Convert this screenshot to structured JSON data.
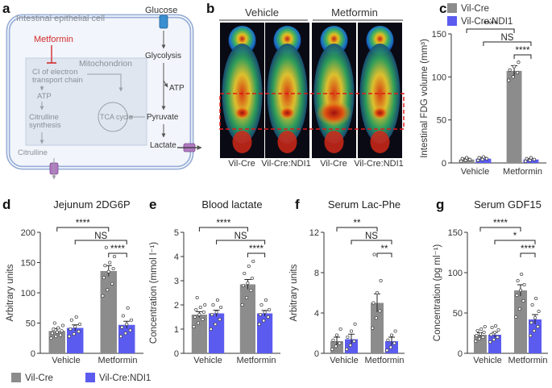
{
  "panel_letters": {
    "a": "a",
    "b": "b",
    "c": "c",
    "d": "d",
    "e": "e",
    "f": "f",
    "g": "g"
  },
  "schematic": {
    "cell_label": "Intestinal epithelial cell",
    "glucose": "Glucose",
    "glycolysis": "Glycolysis",
    "atp_right": "ATP",
    "pyruvate": "Pyruvate",
    "lactate": "Lactate",
    "metformin": "Metformin",
    "mitochondrion": "Mitochondrion",
    "ci_line1": "CI of electron",
    "ci_line2": "transport chain",
    "atp_left": "ATP",
    "citrulline_line1": "Citrulline",
    "citrulline_line2": "synthesis",
    "tca": "TCA cycle",
    "citrulline": "Citrulline"
  },
  "pet": {
    "group_vehicle": "Vehicle",
    "group_metformin": "Metformin",
    "labels": [
      "Vil-Cre",
      "Vil-Cre:NDI1",
      "Vil-Cre",
      "Vil-Cre:NDI1"
    ]
  },
  "legend": {
    "vilcre": "Vil-Cre",
    "ndi1": "Vil-Cre:NDI1",
    "color_vilcre": "#8c8c8c",
    "color_ndi1": "#5b5bf0"
  },
  "chart_data": [
    {
      "id": "c",
      "type": "bar",
      "title": "",
      "ylabel": "Intestinal FDG volume (mm³)",
      "categories": [
        "Vehicle",
        "Metformin"
      ],
      "ylim": [
        0,
        150
      ],
      "yticks": [
        0,
        50,
        100,
        150
      ],
      "series": [
        {
          "name": "Vil-Cre",
          "values": [
            4,
            107
          ],
          "errors": [
            1.5,
            6
          ],
          "points": [
            [
              2,
              3,
              4,
              5,
              6
            ],
            [
              96,
              100,
              105,
              108,
              112,
              117
            ]
          ]
        },
        {
          "name": "Vil-Cre:NDI1",
          "values": [
            5,
            4
          ],
          "errors": [
            1.5,
            1
          ],
          "points": [
            [
              3,
              4,
              5,
              6,
              7
            ],
            [
              2,
              3,
              4,
              5,
              6
            ]
          ]
        }
      ],
      "stats": [
        "****",
        "NS",
        "****"
      ]
    },
    {
      "id": "d",
      "type": "bar",
      "title": "Jejunum 2DG6P",
      "ylabel": "Arbitrary units",
      "categories": [
        "Vehicle",
        "Metformin"
      ],
      "ylim": [
        0,
        200
      ],
      "yticks": [
        0,
        50,
        100,
        150,
        200
      ],
      "series": [
        {
          "name": "Vil-Cre",
          "values": [
            37,
            136
          ],
          "errors": [
            4,
            9
          ],
          "points": [
            [
              25,
              28,
              30,
              33,
              35,
              37,
              40,
              42,
              46,
              50
            ],
            [
              95,
              105,
              115,
              125,
              135,
              140,
              145,
              150,
              160,
              175
            ]
          ]
        },
        {
          "name": "Vil-Cre:NDI1",
          "values": [
            42,
            47
          ],
          "errors": [
            5,
            6
          ],
          "points": [
            [
              28,
              32,
              36,
              40,
              44,
              48,
              55,
              60
            ],
            [
              28,
              33,
              38,
              43,
              48,
              55,
              62,
              75
            ]
          ]
        }
      ],
      "stats": [
        "****",
        "NS",
        "****"
      ]
    },
    {
      "id": "e",
      "type": "bar",
      "title": "Blood lactate",
      "ylabel": "Concentration (mmol l⁻¹)",
      "categories": [
        "Vehicle",
        "Metformin"
      ],
      "ylim": [
        0,
        5
      ],
      "yticks": [
        0,
        1,
        2,
        3,
        4,
        5
      ],
      "series": [
        {
          "name": "Vil-Cre",
          "values": [
            1.6,
            2.85
          ],
          "errors": [
            0.12,
            0.2
          ],
          "points": [
            [
              1.1,
              1.25,
              1.4,
              1.5,
              1.6,
              1.7,
              1.8,
              1.9,
              2.0,
              2.3
            ],
            [
              2.0,
              2.3,
              2.6,
              2.8,
              2.9,
              3.1,
              3.3,
              3.6,
              3.8
            ]
          ]
        },
        {
          "name": "Vil-Cre:NDI1",
          "values": [
            1.65,
            1.65
          ],
          "errors": [
            0.13,
            0.12
          ],
          "points": [
            [
              1.0,
              1.2,
              1.4,
              1.6,
              1.7,
              1.9,
              2.0,
              2.2
            ],
            [
              1.2,
              1.35,
              1.5,
              1.6,
              1.7,
              1.8,
              2.0,
              2.2
            ]
          ]
        }
      ],
      "stats": [
        "****",
        "NS",
        "****"
      ]
    },
    {
      "id": "f",
      "type": "bar",
      "title": "Serum Lac-Phe",
      "ylabel": "Arbitrary units",
      "categories": [
        "Vehicle",
        "Metformin"
      ],
      "ylim": [
        0,
        12
      ],
      "yticks": [
        0,
        4,
        8,
        12
      ],
      "series": [
        {
          "name": "Vil-Cre",
          "values": [
            1.2,
            5.0
          ],
          "errors": [
            0.4,
            0.9
          ],
          "points": [
            [
              0.4,
              0.7,
              1.0,
              1.3,
              1.8,
              2.4
            ],
            [
              2.5,
              3.5,
              4.2,
              5.0,
              6.0,
              7.2,
              9.8
            ]
          ]
        },
        {
          "name": "Vil-Cre:NDI1",
          "values": [
            1.4,
            1.2
          ],
          "errors": [
            0.5,
            0.4
          ],
          "points": [
            [
              0.4,
              0.8,
              1.2,
              1.6,
              2.2,
              2.9
            ],
            [
              0.3,
              0.6,
              1.0,
              1.3,
              1.8,
              2.2
            ]
          ]
        }
      ],
      "stats": [
        "**",
        "NS",
        "**"
      ]
    },
    {
      "id": "g",
      "type": "bar",
      "title": "Serum GDF15",
      "ylabel": "Concentration (pg ml⁻¹)",
      "categories": [
        "Vehicle",
        "Metformin"
      ],
      "ylim": [
        0,
        150
      ],
      "yticks": [
        0,
        50,
        100,
        150
      ],
      "series": [
        {
          "name": "Vil-Cre",
          "values": [
            23,
            78
          ],
          "errors": [
            2.5,
            7
          ],
          "points": [
            [
              15,
              18,
              20,
              22,
              24,
              26,
              28,
              30,
              33
            ],
            [
              45,
              55,
              65,
              72,
              78,
              85,
              90,
              98
            ]
          ]
        },
        {
          "name": "Vil-Cre:NDI1",
          "values": [
            23,
            42
          ],
          "errors": [
            3,
            6
          ],
          "points": [
            [
              14,
              17,
              20,
              23,
              26,
              29,
              32,
              34
            ],
            [
              22,
              28,
              33,
              38,
              44,
              52,
              60,
              68
            ]
          ]
        }
      ],
      "stats": [
        "****",
        "*",
        "****"
      ]
    }
  ]
}
